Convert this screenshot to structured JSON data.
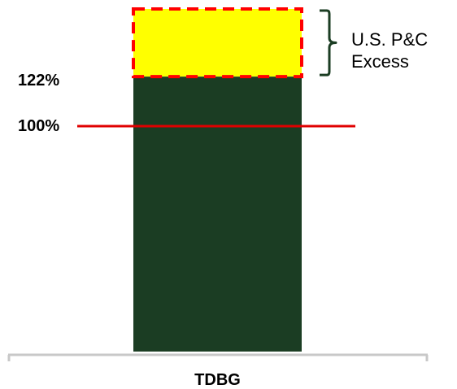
{
  "chart_data": {
    "type": "bar",
    "categories": [
      "TDBG"
    ],
    "series": [
      {
        "values": [
          122
        ]
      }
    ],
    "stacked_excess": {
      "label": "U.S. P&C Excess",
      "label_lines": [
        "U.S. P&C",
        "Excess"
      ],
      "from": 122,
      "to": 152,
      "fill": "#ffff00",
      "border": "#ff0000",
      "border_style": "dashed"
    },
    "reference_line": {
      "value": 100,
      "label": "100%",
      "color": "#e00000"
    },
    "value_labels": [
      {
        "value": 122,
        "text": "122%"
      },
      {
        "value": 100,
        "text": "100%"
      }
    ],
    "bar_color": "#1b3d23",
    "brace_color": "#1b3d23",
    "axis_color": "#c8c8c8",
    "ylim": [
      0,
      152
    ],
    "yaxis_visible": false,
    "grid": false,
    "legend": "none",
    "title": "",
    "xlabel": "",
    "ylabel": ""
  }
}
